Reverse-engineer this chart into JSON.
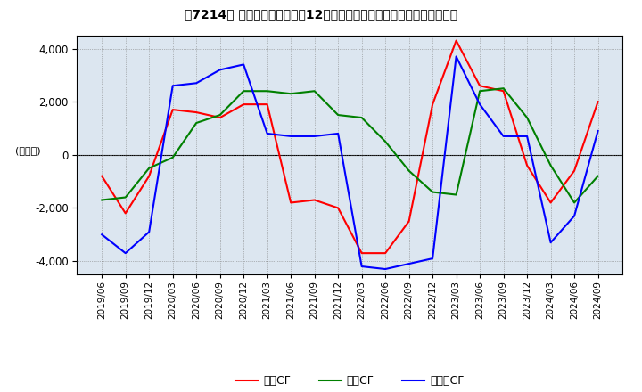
{
  "title": "【7214】 キャッシュフローの12か月移動合計の対前年同期増減額の推移",
  "ylabel": "(百万円)",
  "ylim": [
    -4500,
    4500
  ],
  "yticks": [
    -4000,
    -2000,
    0,
    2000,
    4000
  ],
  "legend_labels": [
    "営業CF",
    "投資CF",
    "フリーCF"
  ],
  "line_colors": [
    "#ff0000",
    "#008000",
    "#0000ff"
  ],
  "background_color": "#dce6f0",
  "dates": [
    "2019/06",
    "2019/09",
    "2019/12",
    "2020/03",
    "2020/06",
    "2020/09",
    "2020/12",
    "2021/03",
    "2021/06",
    "2021/09",
    "2021/12",
    "2022/03",
    "2022/06",
    "2022/09",
    "2022/12",
    "2023/03",
    "2023/06",
    "2023/09",
    "2023/12",
    "2024/03",
    "2024/06",
    "2024/09"
  ],
  "eigyo_cf": [
    -800,
    -2200,
    -800,
    1700,
    1600,
    1400,
    1900,
    1900,
    -1800,
    -1700,
    -2000,
    -3700,
    -3700,
    -2500,
    1900,
    4300,
    2600,
    2400,
    -400,
    -1800,
    -600,
    2000
  ],
  "toshi_cf": [
    -1700,
    -1600,
    -500,
    -100,
    1200,
    1500,
    2400,
    2400,
    2300,
    2400,
    1500,
    1400,
    500,
    -600,
    -1400,
    -1500,
    2400,
    2500,
    1400,
    -400,
    -1800,
    -800
  ],
  "free_cf": [
    -3000,
    -3700,
    -2900,
    2600,
    2700,
    3200,
    3400,
    800,
    700,
    700,
    800,
    -4200,
    -4300,
    -4100,
    -3900,
    3700,
    1900,
    700,
    700,
    -3300,
    -2300,
    900
  ]
}
